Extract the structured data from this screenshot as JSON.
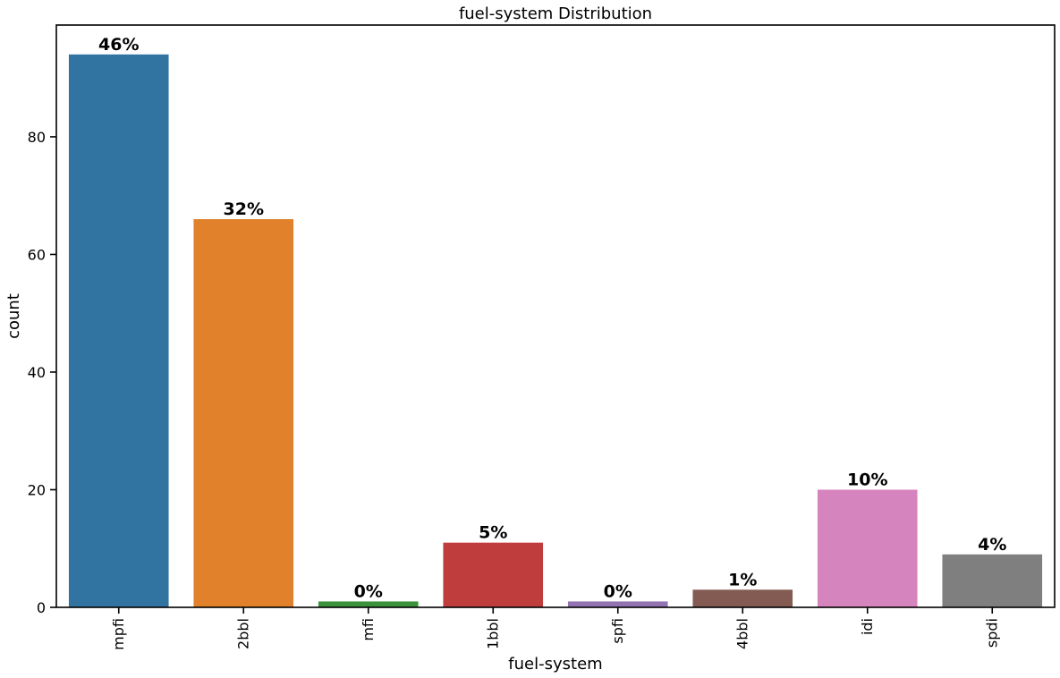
{
  "chart_data": {
    "type": "bar",
    "title": "fuel-system Distribution",
    "xlabel": "fuel-system",
    "ylabel": "count",
    "categories": [
      "mpfi",
      "2bbl",
      "mfi",
      "1bbl",
      "spfi",
      "4bbl",
      "idi",
      "spdi"
    ],
    "values": [
      94,
      66,
      1,
      11,
      1,
      3,
      20,
      9
    ],
    "data_labels": [
      "46%",
      "32%",
      "0%",
      "5%",
      "0%",
      "1%",
      "10%",
      "4%"
    ],
    "colors": [
      "#3274a1",
      "#e1812c",
      "#3a923a",
      "#c03d3e",
      "#9372b2",
      "#845b53",
      "#d684bd",
      "#7f7f7f"
    ],
    "ylim": [
      0,
      99
    ],
    "yticks": [
      0,
      20,
      40,
      60,
      80
    ],
    "grid": false,
    "legend": "none"
  }
}
